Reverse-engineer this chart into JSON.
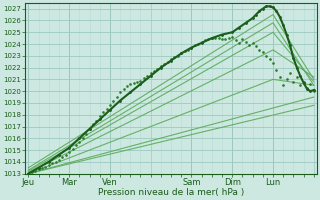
{
  "bg_color": "#cce8e0",
  "grid_major_color": "#9dc8c0",
  "grid_minor_color": "#b8ddd8",
  "line_color_dark": "#1a5c1a",
  "line_color_mid": "#2e7d2e",
  "line_color_light": "#5aaa5a",
  "ylabel_values": [
    1013,
    1014,
    1015,
    1016,
    1017,
    1018,
    1019,
    1020,
    1021,
    1022,
    1023,
    1024,
    1025,
    1026,
    1027
  ],
  "xlabel": "Pression niveau de la mer( hPa )",
  "x_tick_labels": [
    "Jeu",
    "Mar",
    "Ven",
    "Sam",
    "Dim",
    "Lun"
  ],
  "x_tick_positions": [
    0,
    24,
    48,
    96,
    120,
    144
  ],
  "ylim": [
    1013.0,
    1027.5
  ],
  "xlim": [
    -2,
    170
  ],
  "main_dotted_line": {
    "x": [
      0,
      2,
      4,
      6,
      8,
      10,
      12,
      14,
      16,
      18,
      20,
      22,
      24,
      26,
      28,
      30,
      32,
      34,
      36,
      38,
      40,
      42,
      44,
      46,
      48,
      50,
      52,
      54,
      56,
      58,
      60,
      62,
      64,
      66,
      68,
      70,
      72,
      74,
      76,
      78,
      80,
      82,
      84,
      86,
      88,
      90,
      92,
      94,
      96,
      98,
      100,
      102,
      104,
      106,
      108,
      110,
      112,
      114,
      116,
      118,
      120,
      122,
      124,
      126,
      128,
      130,
      132,
      134,
      136,
      138,
      140,
      142,
      144,
      146,
      148,
      150,
      152,
      154,
      156,
      158,
      160,
      162,
      164,
      166,
      168
    ],
    "y": [
      1013.0,
      1013.1,
      1013.2,
      1013.4,
      1013.5,
      1013.6,
      1013.7,
      1013.9,
      1014.0,
      1014.2,
      1014.4,
      1014.6,
      1014.8,
      1015.1,
      1015.4,
      1015.7,
      1016.0,
      1016.4,
      1016.8,
      1017.2,
      1017.5,
      1017.9,
      1018.2,
      1018.5,
      1018.8,
      1019.2,
      1019.5,
      1019.9,
      1020.2,
      1020.4,
      1020.6,
      1020.7,
      1020.8,
      1020.9,
      1021.1,
      1021.3,
      1021.5,
      1021.7,
      1021.9,
      1022.1,
      1022.3,
      1022.5,
      1022.7,
      1022.9,
      1023.0,
      1023.2,
      1023.4,
      1023.5,
      1023.7,
      1023.9,
      1024.0,
      1024.2,
      1024.3,
      1024.4,
      1024.5,
      1024.5,
      1024.5,
      1024.4,
      1024.4,
      1024.5,
      1024.6,
      1024.3,
      1024.1,
      1024.4,
      1024.2,
      1023.9,
      1024.1,
      1023.8,
      1023.5,
      1023.3,
      1023.0,
      1022.7,
      1022.4,
      1021.8,
      1021.2,
      1020.5,
      1021.0,
      1021.5,
      1020.8,
      1021.2,
      1020.5,
      1020.8,
      1020.3,
      1020.6,
      1020.0
    ]
  },
  "bold_line": {
    "x": [
      0,
      6,
      12,
      18,
      24,
      30,
      36,
      42,
      48,
      54,
      60,
      66,
      72,
      78,
      84,
      90,
      96,
      102,
      108,
      114,
      120,
      124,
      128,
      132,
      134,
      136,
      138,
      140,
      142,
      144,
      146,
      148,
      150,
      152,
      154,
      156,
      158,
      160,
      162,
      164,
      166,
      168
    ],
    "y": [
      1013.0,
      1013.5,
      1014.0,
      1014.6,
      1015.2,
      1016.0,
      1016.8,
      1017.6,
      1018.4,
      1019.2,
      1019.9,
      1020.6,
      1021.3,
      1022.0,
      1022.6,
      1023.2,
      1023.7,
      1024.1,
      1024.5,
      1024.8,
      1025.0,
      1025.4,
      1025.8,
      1026.2,
      1026.5,
      1026.8,
      1027.0,
      1027.2,
      1027.2,
      1027.1,
      1026.8,
      1026.3,
      1025.6,
      1024.8,
      1023.9,
      1022.8,
      1022.0,
      1021.3,
      1020.7,
      1020.2,
      1020.0,
      1020.1
    ]
  },
  "ensemble_lines": [
    {
      "x": [
        0,
        144,
        168
      ],
      "y": [
        1013.5,
        1026.5,
        1021.0
      ]
    },
    {
      "x": [
        0,
        144,
        168
      ],
      "y": [
        1013.3,
        1025.8,
        1020.5
      ]
    },
    {
      "x": [
        0,
        144,
        168
      ],
      "y": [
        1013.2,
        1025.0,
        1020.8
      ]
    },
    {
      "x": [
        0,
        144,
        168
      ],
      "y": [
        1013.1,
        1023.5,
        1021.2
      ]
    },
    {
      "x": [
        0,
        144,
        168
      ],
      "y": [
        1013.0,
        1021.0,
        1020.5
      ]
    },
    {
      "x": [
        0,
        168
      ],
      "y": [
        1013.0,
        1019.5
      ]
    },
    {
      "x": [
        0,
        168
      ],
      "y": [
        1013.0,
        1018.8
      ]
    }
  ]
}
